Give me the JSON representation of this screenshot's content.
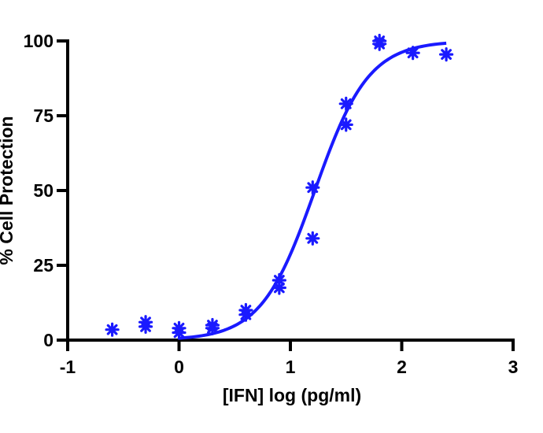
{
  "chart_data": {
    "type": "scatter",
    "title": "",
    "xlabel": "[IFN] log (pg/ml)",
    "ylabel": "% Cell Protection",
    "xlim": [
      -1,
      3
    ],
    "ylim": [
      0,
      100
    ],
    "x_ticks": [
      -1,
      0,
      1,
      2,
      3
    ],
    "x_tick_labels": [
      "-1",
      "0",
      "1",
      "2",
      "3"
    ],
    "y_ticks": [
      0,
      25,
      50,
      75,
      100
    ],
    "y_tick_labels": [
      "0",
      "25",
      "50",
      "75",
      "100"
    ],
    "grid": false,
    "legend": "none",
    "colors": {
      "series": "#1a1aff",
      "axis": "#000000"
    },
    "series": [
      {
        "marker": "asterisk",
        "points": [
          {
            "x": -0.6,
            "y": 3.5
          },
          {
            "x": -0.3,
            "y": 4.5
          },
          {
            "x": -0.3,
            "y": 6
          },
          {
            "x": 0,
            "y": 2.5
          },
          {
            "x": 0,
            "y": 4
          },
          {
            "x": 0.3,
            "y": 4
          },
          {
            "x": 0.3,
            "y": 5
          },
          {
            "x": 0.6,
            "y": 8.5
          },
          {
            "x": 0.6,
            "y": 10
          },
          {
            "x": 0.9,
            "y": 17.5
          },
          {
            "x": 0.9,
            "y": 20
          },
          {
            "x": 1.2,
            "y": 34
          },
          {
            "x": 1.2,
            "y": 51
          },
          {
            "x": 1.5,
            "y": 72
          },
          {
            "x": 1.5,
            "y": 79
          },
          {
            "x": 1.8,
            "y": 99
          },
          {
            "x": 1.8,
            "y": 100
          },
          {
            "x": 2.1,
            "y": 96
          },
          {
            "x": 2.4,
            "y": 95.5
          }
        ]
      }
    ],
    "fit_curve": {
      "type": "sigmoid",
      "x_range": [
        0,
        2.4
      ],
      "bottom": 0,
      "top": 100,
      "log_ec50": 1.22,
      "hill_slope": 1.8
    }
  }
}
